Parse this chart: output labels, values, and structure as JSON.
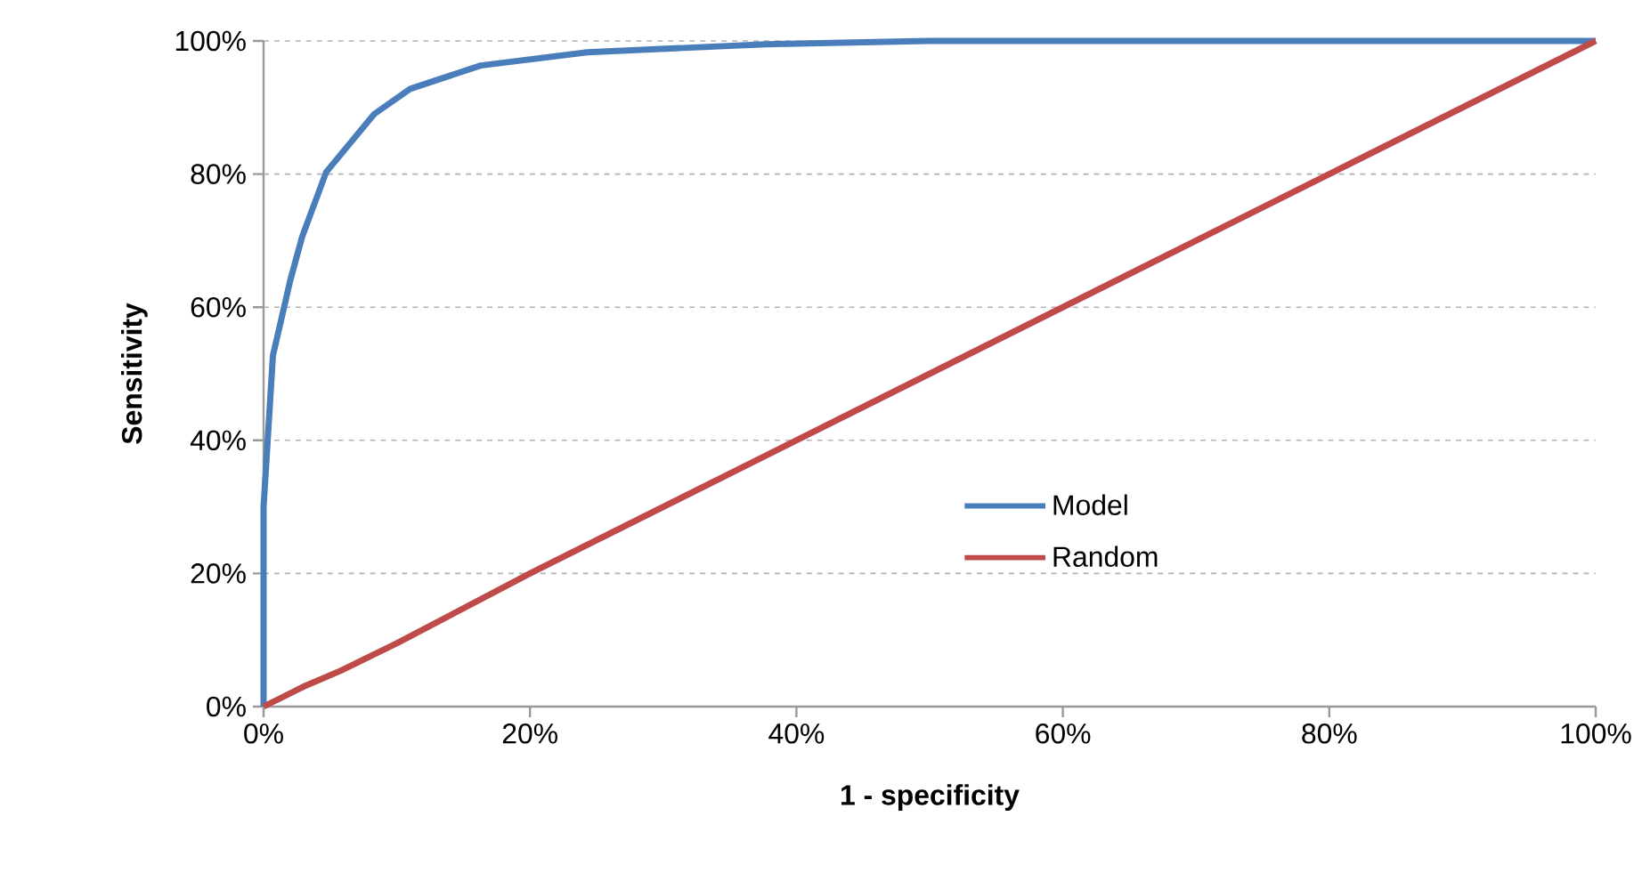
{
  "chart_data": {
    "type": "line",
    "xlabel": "1 - specificity",
    "ylabel": "Sensitivity",
    "xlim": [
      0,
      100
    ],
    "ylim": [
      0,
      100
    ],
    "xticks": [
      {
        "value": 0,
        "label": "0%"
      },
      {
        "value": 20,
        "label": "20%"
      },
      {
        "value": 40,
        "label": "40%"
      },
      {
        "value": 60,
        "label": "60%"
      },
      {
        "value": 80,
        "label": "80%"
      },
      {
        "value": 100,
        "label": "100%"
      }
    ],
    "yticks": [
      {
        "value": 0,
        "label": "0%"
      },
      {
        "value": 20,
        "label": "20%"
      },
      {
        "value": 40,
        "label": "40%"
      },
      {
        "value": 60,
        "label": "60%"
      },
      {
        "value": 80,
        "label": "80%"
      },
      {
        "value": 100,
        "label": "100%"
      }
    ],
    "grid": "y",
    "legend": "bottom right",
    "marker": "none",
    "line_style": "solid",
    "series": [
      {
        "name": "Model",
        "color": "#4a7ebb",
        "x": [
          0,
          0,
          0.7,
          2,
          2.9,
          4.7,
          8.3,
          11,
          16.3,
          24.3,
          37.7,
          50,
          100
        ],
        "values": [
          0,
          30,
          52.7,
          64,
          70.6,
          80.3,
          89,
          92.8,
          96.3,
          98.3,
          99.5,
          100,
          100
        ]
      },
      {
        "name": "Random",
        "color": "#be4b48",
        "x": [
          0,
          3,
          5.8,
          10,
          20,
          40,
          60,
          80,
          100
        ],
        "values": [
          0,
          3,
          5.4,
          9.5,
          20,
          40,
          60,
          80,
          100
        ]
      }
    ]
  }
}
